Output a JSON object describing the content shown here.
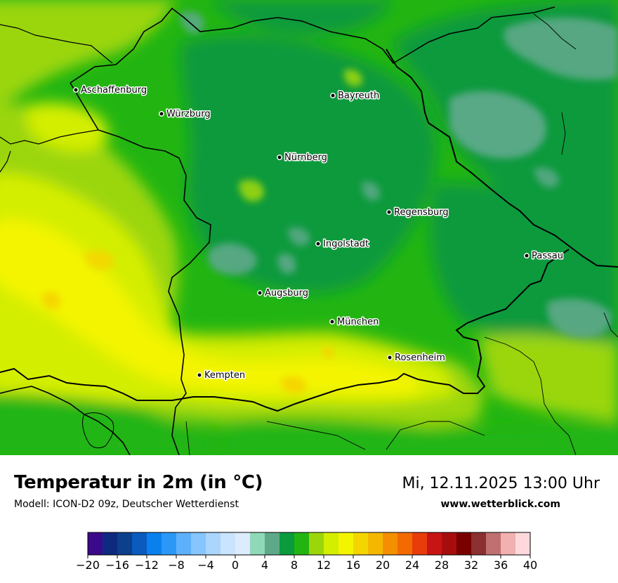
{
  "title": "Temperatur in 2m (in °C)",
  "subtitle": "Modell: ICON-D2 09z, Deutscher Wetterdienst",
  "datetime": "Mi, 12.11.2025 13:00 Uhr",
  "website": "www.wetterblick.com",
  "cities": [
    {
      "name": "Aschaffenburg"
    },
    {
      "name": "Würzburg"
    },
    {
      "name": "Bayreuth"
    },
    {
      "name": "Nürnberg"
    },
    {
      "name": "Regensburg"
    },
    {
      "name": "Ingolstadt"
    },
    {
      "name": "Passau"
    },
    {
      "name": "Augsburg"
    },
    {
      "name": "München"
    },
    {
      "name": "Rosenheim"
    },
    {
      "name": "Kempten"
    }
  ],
  "legend": {
    "min": -20,
    "max": 40,
    "step": 2,
    "tick_labels": [
      "−20",
      "−16",
      "−12",
      "−8",
      "−4",
      "0",
      "4",
      "8",
      "12",
      "16",
      "20",
      "24",
      "28",
      "32",
      "36",
      "40"
    ],
    "colors": [
      "#3b0a8a",
      "#0d2a80",
      "#0c3f8c",
      "#0a5bbd",
      "#0a80ee",
      "#2b98f8",
      "#5fb0fb",
      "#86c5fd",
      "#aad6fe",
      "#c9e4fe",
      "#dcecfd",
      "#8fd8b8",
      "#5ea98a",
      "#0b9a3e",
      "#22b512",
      "#9bd60a",
      "#d4ee00",
      "#f4f400",
      "#f4d500",
      "#f4b800",
      "#f48f00",
      "#f26a00",
      "#e83c0a",
      "#c81414",
      "#a80d0d",
      "#7a0000",
      "#8a3030",
      "#c07070",
      "#f2b0b0",
      "#ffd8dc"
    ]
  },
  "map_palette": {
    "green_dark": "#0b9a3e",
    "green_mid": "#22b512",
    "green_light": "#9bd60a",
    "yellow_green": "#d4ee00",
    "yellow": "#f4f400",
    "teal": "#5ea98a",
    "orange": "#f4d500"
  }
}
